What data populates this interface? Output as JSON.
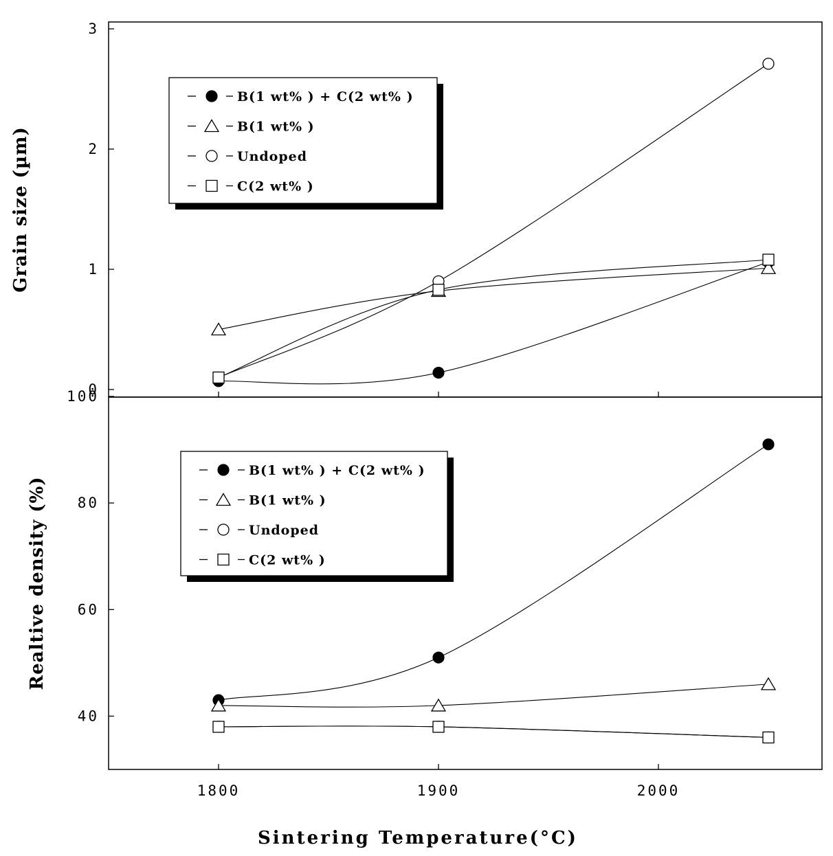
{
  "chart_data": [
    {
      "type": "line",
      "ylabel": "Grain size (µm)",
      "ylim": [
        0,
        3
      ],
      "yticks": [
        "0",
        "1",
        "2",
        "3"
      ],
      "x": [
        1800,
        1900,
        2050
      ],
      "grid": false,
      "legend_position": "top-left",
      "series": [
        {
          "name": "B(1 wt% ) + C(2 wt% )",
          "marker": "filled-circle",
          "values": [
            0.07,
            0.14,
            1.06
          ]
        },
        {
          "name": "B(1 wt% )",
          "marker": "triangle",
          "values": [
            0.5,
            0.82,
            1.01
          ]
        },
        {
          "name": "Undoped",
          "marker": "circle",
          "values": [
            0.1,
            0.9,
            2.71
          ]
        },
        {
          "name": "C(2 wt% )",
          "marker": "square",
          "values": [
            0.1,
            0.83,
            1.08
          ]
        }
      ]
    },
    {
      "type": "line",
      "ylabel": "Realtive density (%)",
      "xlabel": "Sintering Temperature(°C)",
      "ylim": [
        30,
        100
      ],
      "yticks": [
        "40",
        "60",
        "80",
        "100"
      ],
      "x": [
        1800,
        1900,
        2050
      ],
      "xticks": [
        "1800",
        "1900",
        "2000"
      ],
      "grid": false,
      "legend_position": "top-left",
      "series": [
        {
          "name": "B(1 wt% ) + C(2 wt% )",
          "marker": "filled-circle",
          "values": [
            43,
            51,
            91
          ]
        },
        {
          "name": "B(1 wt% )",
          "marker": "triangle",
          "values": [
            42,
            42,
            46
          ]
        },
        {
          "name": "Undoped",
          "marker": "circle",
          "values": [
            38,
            38,
            36
          ]
        },
        {
          "name": "C(2 wt% )",
          "marker": "square",
          "values": [
            38,
            38,
            36
          ]
        }
      ]
    }
  ]
}
